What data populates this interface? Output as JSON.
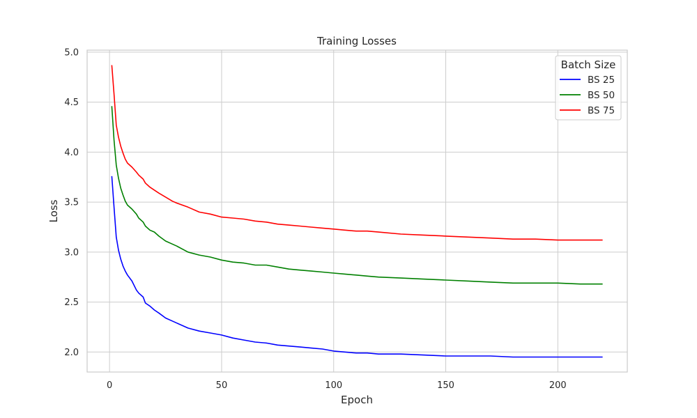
{
  "chart_data": {
    "type": "line",
    "title": "Training Losses",
    "xlabel": "Epoch",
    "ylabel": "Loss",
    "xlim": [
      -10,
      231
    ],
    "ylim": [
      1.8,
      5.02
    ],
    "xticks": [
      0,
      50,
      100,
      150,
      200
    ],
    "xtick_labels": [
      "0",
      "50",
      "100",
      "150",
      "200"
    ],
    "yticks": [
      2.0,
      2.5,
      3.0,
      3.5,
      4.0,
      4.5,
      5.0
    ],
    "ytick_labels": [
      "2.0",
      "2.5",
      "3.0",
      "3.5",
      "4.0",
      "4.5",
      "5.0"
    ],
    "grid": true,
    "legend": {
      "title": "Batch Size",
      "position": "top-right"
    },
    "x": [
      1,
      2,
      3,
      4,
      5,
      6,
      7,
      8,
      10,
      12,
      13,
      15,
      16,
      18,
      20,
      22,
      25,
      28,
      30,
      35,
      40,
      45,
      50,
      55,
      60,
      65,
      70,
      75,
      80,
      85,
      90,
      95,
      100,
      105,
      110,
      115,
      120,
      130,
      140,
      150,
      160,
      170,
      180,
      190,
      200,
      210,
      220
    ],
    "series": [
      {
        "name": "BS 25",
        "color": "#0000ff",
        "values": [
          3.76,
          3.45,
          3.15,
          3.02,
          2.93,
          2.86,
          2.81,
          2.77,
          2.71,
          2.62,
          2.59,
          2.55,
          2.49,
          2.46,
          2.42,
          2.39,
          2.34,
          2.31,
          2.29,
          2.24,
          2.21,
          2.19,
          2.17,
          2.14,
          2.12,
          2.1,
          2.09,
          2.07,
          2.06,
          2.05,
          2.04,
          2.03,
          2.01,
          2.0,
          1.99,
          1.99,
          1.98,
          1.98,
          1.97,
          1.96,
          1.96,
          1.96,
          1.95,
          1.95,
          1.95,
          1.95,
          1.95
        ]
      },
      {
        "name": "BS 50",
        "color": "#008000",
        "values": [
          4.46,
          4.12,
          3.87,
          3.74,
          3.64,
          3.57,
          3.51,
          3.47,
          3.43,
          3.38,
          3.34,
          3.3,
          3.26,
          3.22,
          3.2,
          3.16,
          3.11,
          3.08,
          3.06,
          3.0,
          2.97,
          2.95,
          2.92,
          2.9,
          2.89,
          2.87,
          2.87,
          2.85,
          2.83,
          2.82,
          2.81,
          2.8,
          2.79,
          2.78,
          2.77,
          2.76,
          2.75,
          2.74,
          2.73,
          2.72,
          2.71,
          2.7,
          2.69,
          2.69,
          2.69,
          2.68,
          2.68
        ]
      },
      {
        "name": "BS 75",
        "color": "#ff0000",
        "values": [
          4.87,
          4.58,
          4.27,
          4.15,
          4.06,
          3.99,
          3.93,
          3.89,
          3.85,
          3.8,
          3.77,
          3.73,
          3.69,
          3.65,
          3.62,
          3.59,
          3.55,
          3.51,
          3.49,
          3.45,
          3.4,
          3.38,
          3.35,
          3.34,
          3.33,
          3.31,
          3.3,
          3.28,
          3.27,
          3.26,
          3.25,
          3.24,
          3.23,
          3.22,
          3.21,
          3.21,
          3.2,
          3.18,
          3.17,
          3.16,
          3.15,
          3.14,
          3.13,
          3.13,
          3.12,
          3.12,
          3.12
        ]
      }
    ]
  }
}
